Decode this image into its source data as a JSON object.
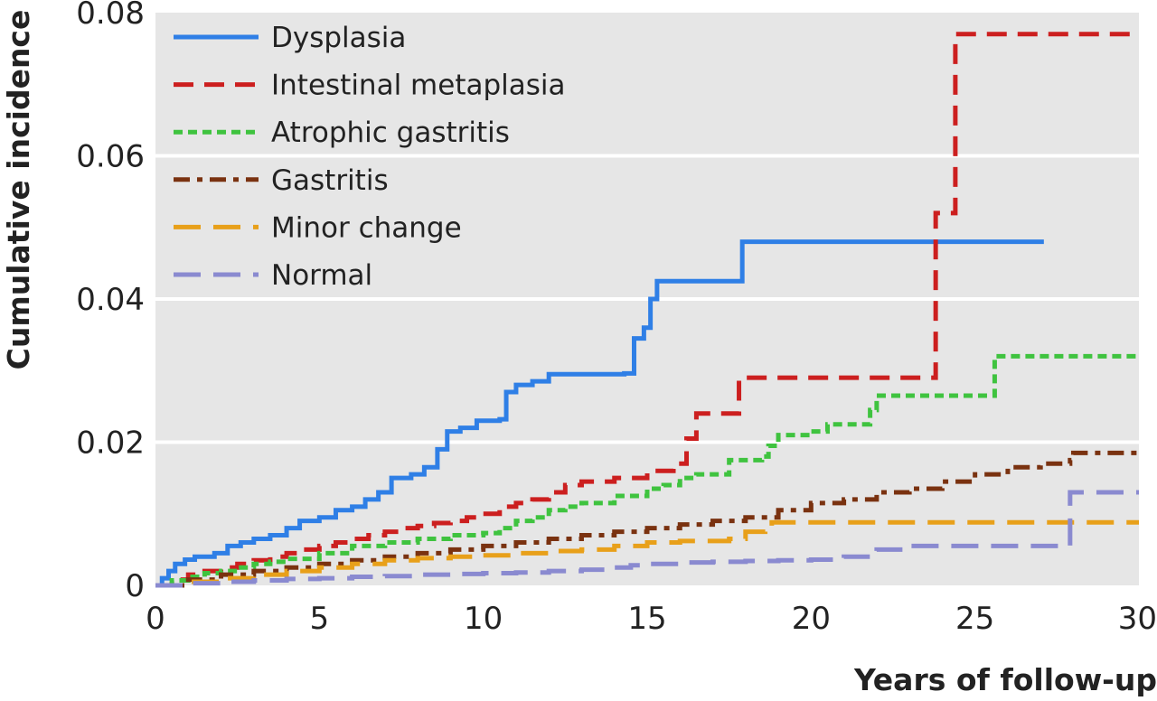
{
  "chart_data": {
    "type": "line",
    "step": true,
    "xlabel": "Years of follow-up",
    "ylabel": "Cumulative incidence",
    "xlim": [
      0,
      30
    ],
    "ylim": [
      0,
      0.08
    ],
    "xticks": [
      0,
      5,
      10,
      15,
      20,
      25,
      30
    ],
    "xtick_labels": [
      "0",
      "5",
      "10",
      "15",
      "20",
      "25",
      "30"
    ],
    "yticks": [
      0,
      0.02,
      0.04,
      0.06,
      0.08
    ],
    "ytick_labels": [
      "0",
      "0.02",
      "0.04",
      "0.06",
      "0.08"
    ],
    "grid": "horizontal",
    "legend_position": "top-left",
    "series": [
      {
        "name": "Dysplasia",
        "color": "#2f7fe6",
        "dash": "solid",
        "points": [
          [
            0,
            0
          ],
          [
            0.2,
            0.001
          ],
          [
            0.4,
            0.002
          ],
          [
            0.6,
            0.003
          ],
          [
            0.9,
            0.0036
          ],
          [
            1.2,
            0.004
          ],
          [
            1.8,
            0.0045
          ],
          [
            2.2,
            0.0055
          ],
          [
            2.6,
            0.006
          ],
          [
            3,
            0.0065
          ],
          [
            3.5,
            0.007
          ],
          [
            4,
            0.008
          ],
          [
            4.4,
            0.009
          ],
          [
            5,
            0.0095
          ],
          [
            5.5,
            0.0105
          ],
          [
            6,
            0.011
          ],
          [
            6.4,
            0.012
          ],
          [
            6.8,
            0.013
          ],
          [
            7.2,
            0.015
          ],
          [
            7.8,
            0.0155
          ],
          [
            8.2,
            0.0165
          ],
          [
            8.6,
            0.019
          ],
          [
            8.9,
            0.0215
          ],
          [
            9.3,
            0.022
          ],
          [
            9.8,
            0.023
          ],
          [
            10.5,
            0.0232
          ],
          [
            10.7,
            0.027
          ],
          [
            11,
            0.028
          ],
          [
            11.5,
            0.0285
          ],
          [
            12,
            0.0295
          ],
          [
            14.3,
            0.0296
          ],
          [
            14.6,
            0.0345
          ],
          [
            14.9,
            0.036
          ],
          [
            15.1,
            0.04
          ],
          [
            15.3,
            0.0425
          ],
          [
            17.7,
            0.0425
          ],
          [
            17.9,
            0.048
          ],
          [
            27.1,
            0.048
          ]
        ]
      },
      {
        "name": "Intestinal metaplasia",
        "color": "#cc1f1f",
        "dash": "dashed",
        "points": [
          [
            0,
            0
          ],
          [
            0.5,
            0.0008
          ],
          [
            1,
            0.0015
          ],
          [
            1.5,
            0.002
          ],
          [
            2,
            0.0025
          ],
          [
            2.5,
            0.003
          ],
          [
            3,
            0.0035
          ],
          [
            3.5,
            0.004
          ],
          [
            4,
            0.0045
          ],
          [
            4.5,
            0.005
          ],
          [
            5,
            0.0055
          ],
          [
            5.5,
            0.006
          ],
          [
            6,
            0.0065
          ],
          [
            6.5,
            0.007
          ],
          [
            7,
            0.0075
          ],
          [
            7.5,
            0.008
          ],
          [
            8,
            0.0083
          ],
          [
            8.5,
            0.0087
          ],
          [
            9,
            0.009
          ],
          [
            9.5,
            0.0095
          ],
          [
            10,
            0.01
          ],
          [
            10.5,
            0.011
          ],
          [
            11,
            0.0115
          ],
          [
            11.5,
            0.012
          ],
          [
            12,
            0.013
          ],
          [
            12.5,
            0.014
          ],
          [
            13,
            0.0145
          ],
          [
            14,
            0.015
          ],
          [
            15,
            0.016
          ],
          [
            15.8,
            0.017
          ],
          [
            16.2,
            0.0205
          ],
          [
            16.5,
            0.024
          ],
          [
            17.7,
            0.024
          ],
          [
            17.8,
            0.029
          ],
          [
            23.6,
            0.029
          ],
          [
            23.8,
            0.052
          ],
          [
            24.3,
            0.052
          ],
          [
            24.4,
            0.077
          ],
          [
            30,
            0.077
          ]
        ]
      },
      {
        "name": "Atrophic gastritis",
        "color": "#3fc33f",
        "dash": "dotted",
        "points": [
          [
            0,
            0
          ],
          [
            0.5,
            0.0007
          ],
          [
            1,
            0.0012
          ],
          [
            1.5,
            0.0017
          ],
          [
            2,
            0.002
          ],
          [
            2.5,
            0.0025
          ],
          [
            3,
            0.003
          ],
          [
            3.5,
            0.0033
          ],
          [
            4,
            0.0037
          ],
          [
            5,
            0.0045
          ],
          [
            6,
            0.0055
          ],
          [
            7,
            0.006
          ],
          [
            8,
            0.0065
          ],
          [
            9,
            0.007
          ],
          [
            10,
            0.0073
          ],
          [
            10.5,
            0.008
          ],
          [
            11,
            0.009
          ],
          [
            11.5,
            0.0095
          ],
          [
            12,
            0.0105
          ],
          [
            12.5,
            0.011
          ],
          [
            13,
            0.0115
          ],
          [
            14,
            0.0125
          ],
          [
            15,
            0.0135
          ],
          [
            15.5,
            0.014
          ],
          [
            16,
            0.015
          ],
          [
            16.5,
            0.0155
          ],
          [
            17.5,
            0.0175
          ],
          [
            18.5,
            0.018
          ],
          [
            18.7,
            0.0195
          ],
          [
            19,
            0.021
          ],
          [
            20,
            0.0215
          ],
          [
            20.5,
            0.0225
          ],
          [
            21.7,
            0.0225
          ],
          [
            21.8,
            0.0245
          ],
          [
            22,
            0.0265
          ],
          [
            25.5,
            0.0265
          ],
          [
            25.6,
            0.032
          ],
          [
            30,
            0.032
          ]
        ]
      },
      {
        "name": "Gastritis",
        "color": "#7a3210",
        "dash": "dashdot",
        "points": [
          [
            0,
            0
          ],
          [
            1,
            0.0008
          ],
          [
            2,
            0.0015
          ],
          [
            3,
            0.002
          ],
          [
            4,
            0.0025
          ],
          [
            5,
            0.003
          ],
          [
            6,
            0.0035
          ],
          [
            7,
            0.004
          ],
          [
            8,
            0.0045
          ],
          [
            9,
            0.005
          ],
          [
            10,
            0.0055
          ],
          [
            11,
            0.006
          ],
          [
            12,
            0.0065
          ],
          [
            13,
            0.007
          ],
          [
            14,
            0.0075
          ],
          [
            15,
            0.008
          ],
          [
            16,
            0.0085
          ],
          [
            17,
            0.009
          ],
          [
            18,
            0.0095
          ],
          [
            19,
            0.0105
          ],
          [
            20,
            0.0115
          ],
          [
            21,
            0.012
          ],
          [
            22,
            0.013
          ],
          [
            23,
            0.0135
          ],
          [
            24,
            0.0145
          ],
          [
            25,
            0.0155
          ],
          [
            26,
            0.0165
          ],
          [
            27,
            0.017
          ],
          [
            27.9,
            0.0175
          ],
          [
            28,
            0.0185
          ],
          [
            30,
            0.0185
          ]
        ]
      },
      {
        "name": "Minor change",
        "color": "#e8a01a",
        "dash": "longdash",
        "points": [
          [
            0,
            0
          ],
          [
            1,
            0.0005
          ],
          [
            2,
            0.001
          ],
          [
            3,
            0.0015
          ],
          [
            4,
            0.002
          ],
          [
            5,
            0.0025
          ],
          [
            6,
            0.003
          ],
          [
            7,
            0.0035
          ],
          [
            8,
            0.0038
          ],
          [
            9,
            0.004
          ],
          [
            10,
            0.0042
          ],
          [
            11,
            0.0045
          ],
          [
            12,
            0.0048
          ],
          [
            13,
            0.005
          ],
          [
            14,
            0.0055
          ],
          [
            15,
            0.006
          ],
          [
            16,
            0.0062
          ],
          [
            17.5,
            0.0065
          ],
          [
            18,
            0.0075
          ],
          [
            18.6,
            0.008
          ],
          [
            18.8,
            0.0088
          ],
          [
            27.9,
            0.0088
          ],
          [
            28,
            0.0088
          ],
          [
            30,
            0.0088
          ]
        ]
      },
      {
        "name": "Normal",
        "color": "#8a8ad0",
        "dash": "longdash",
        "points": [
          [
            0,
            0
          ],
          [
            1,
            0.0003
          ],
          [
            2,
            0.0005
          ],
          [
            3,
            0.0007
          ],
          [
            4,
            0.0009
          ],
          [
            5,
            0.001
          ],
          [
            6,
            0.0012
          ],
          [
            7,
            0.0013
          ],
          [
            8,
            0.0015
          ],
          [
            9,
            0.0016
          ],
          [
            10,
            0.0017
          ],
          [
            11,
            0.0018
          ],
          [
            12,
            0.002
          ],
          [
            13,
            0.0022
          ],
          [
            14,
            0.0025
          ],
          [
            14.5,
            0.0028
          ],
          [
            15,
            0.003
          ],
          [
            16,
            0.0032
          ],
          [
            17,
            0.0033
          ],
          [
            18,
            0.0034
          ],
          [
            19,
            0.0035
          ],
          [
            20,
            0.0036
          ],
          [
            21,
            0.004
          ],
          [
            22,
            0.005
          ],
          [
            23,
            0.0055
          ],
          [
            25,
            0.0055
          ],
          [
            27.8,
            0.0055
          ],
          [
            27.9,
            0.013
          ],
          [
            30,
            0.013
          ]
        ]
      }
    ]
  }
}
